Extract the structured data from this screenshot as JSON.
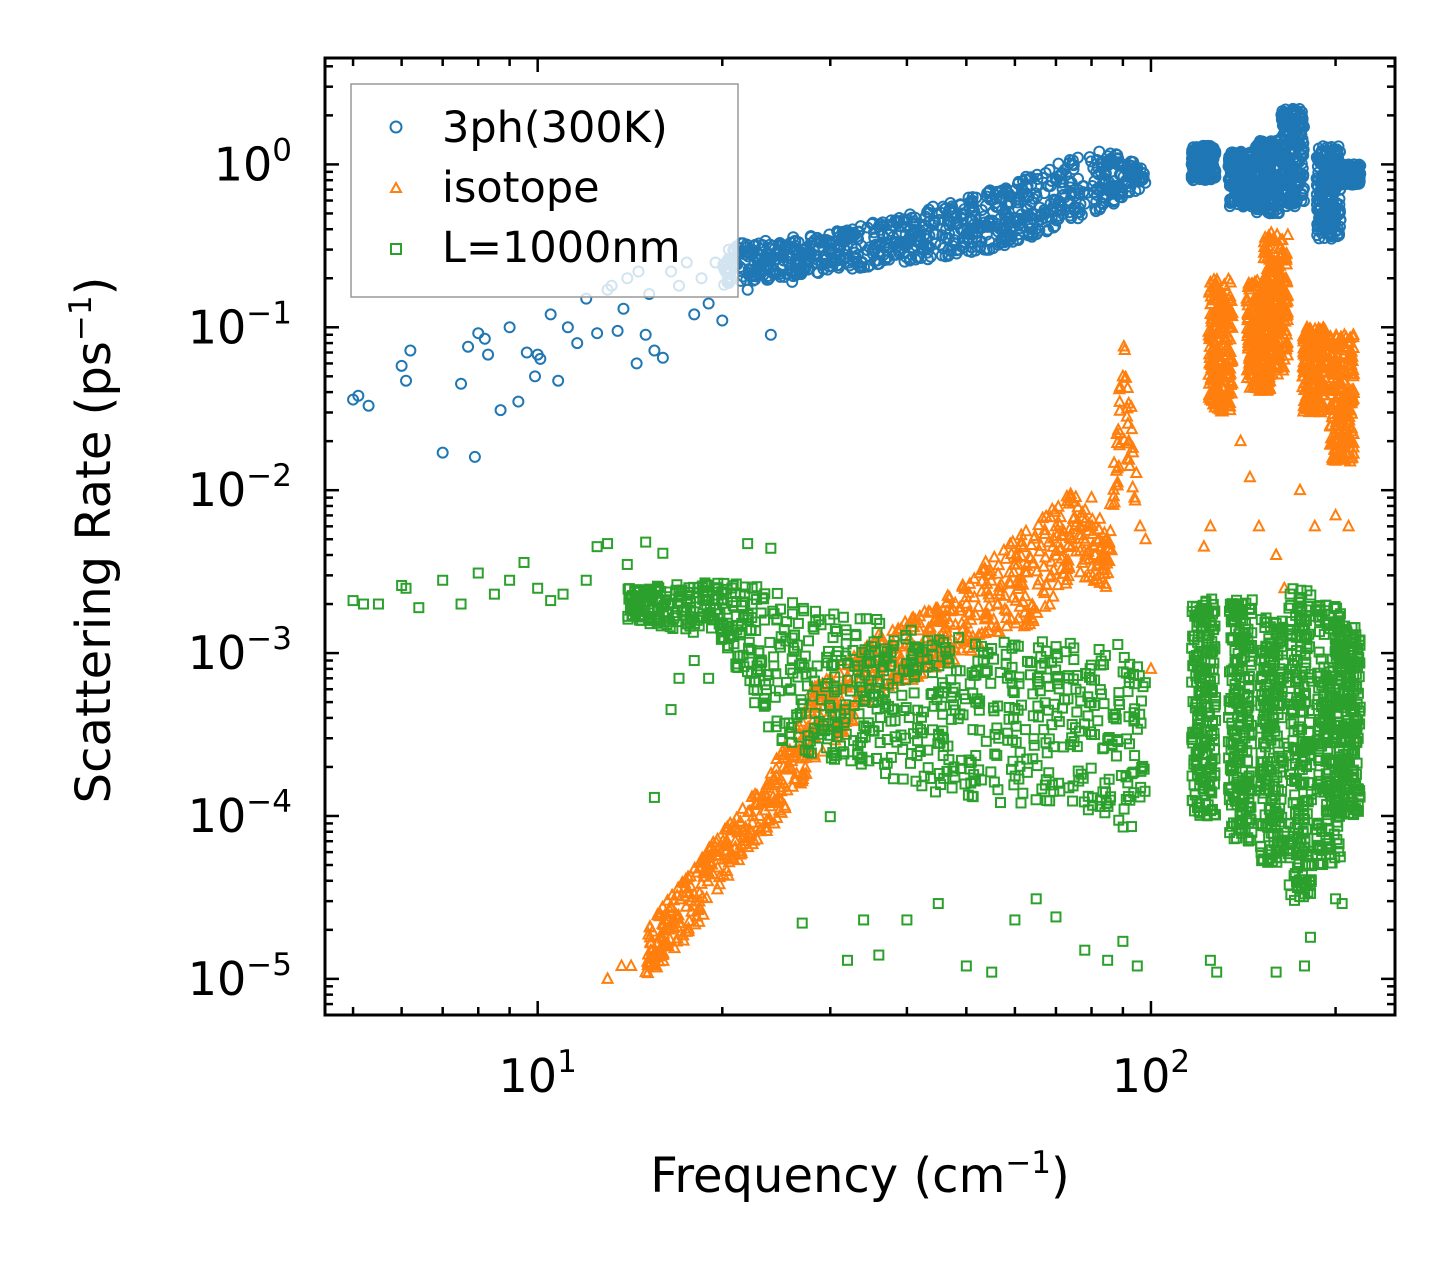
{
  "chart_data": {
    "type": "scatter",
    "title": "",
    "xlabel": "Frequency (cm",
    "xlabel_sup": "−1",
    "xlabel_end": ")",
    "ylabel": "Scattering Rate (ps",
    "ylabel_sup": "−1",
    "ylabel_end": ")",
    "xscale": "log",
    "yscale": "log",
    "xlim": [
      4.5,
      250
    ],
    "ylim": [
      6e-06,
      4.5
    ],
    "x_ticks": [
      {
        "value": 10,
        "base": "10",
        "exp": "1"
      },
      {
        "value": 100,
        "base": "10",
        "exp": "2"
      }
    ],
    "y_ticks": [
      {
        "value": 1,
        "base": "10",
        "exp": "0"
      },
      {
        "value": 0.1,
        "base": "10",
        "exp": "−1"
      },
      {
        "value": 0.01,
        "base": "10",
        "exp": "−2"
      },
      {
        "value": 0.001,
        "base": "10",
        "exp": "−3"
      },
      {
        "value": 0.0001,
        "base": "10",
        "exp": "−4"
      },
      {
        "value": 1e-05,
        "base": "10",
        "exp": "−5"
      }
    ],
    "legend_position": "top-left",
    "series": [
      {
        "name": "3ph(300K)",
        "marker": "circle",
        "color": "#1f77b4",
        "points": [
          [
            5.0,
            0.036
          ],
          [
            5.1,
            0.038
          ],
          [
            5.3,
            0.033
          ],
          [
            6.0,
            0.058
          ],
          [
            6.1,
            0.047
          ],
          [
            6.2,
            0.072
          ],
          [
            7.0,
            0.017
          ],
          [
            7.5,
            0.045
          ],
          [
            7.7,
            0.076
          ],
          [
            7.9,
            0.016
          ],
          [
            8.0,
            0.092
          ],
          [
            8.2,
            0.085
          ],
          [
            8.3,
            0.068
          ],
          [
            8.7,
            0.031
          ],
          [
            9.0,
            0.1
          ],
          [
            9.3,
            0.035
          ],
          [
            9.6,
            0.07
          ],
          [
            9.9,
            0.05
          ],
          [
            10.0,
            0.068
          ],
          [
            10.1,
            0.064
          ],
          [
            10.5,
            0.12
          ],
          [
            10.8,
            0.047
          ],
          [
            11.2,
            0.1
          ],
          [
            11.6,
            0.08
          ],
          [
            12.0,
            0.15
          ],
          [
            12.5,
            0.092
          ],
          [
            13.0,
            0.17
          ],
          [
            13.5,
            0.095
          ],
          [
            14.0,
            0.2
          ],
          [
            14.5,
            0.06
          ],
          [
            15.0,
            0.09
          ],
          [
            15.5,
            0.072
          ],
          [
            16.0,
            0.065
          ],
          [
            17.0,
            0.18
          ],
          [
            18.0,
            0.12
          ],
          [
            19.0,
            0.14
          ],
          [
            20.0,
            0.11
          ],
          [
            22.0,
            0.17
          ],
          [
            24.0,
            0.09
          ],
          [
            26.0,
            0.19
          ],
          [
            13.2,
            0.18
          ],
          [
            13.8,
            0.13
          ],
          [
            14.6,
            0.22
          ],
          [
            15.2,
            0.16
          ],
          [
            16.5,
            0.22
          ],
          [
            17.5,
            0.25
          ],
          [
            18.5,
            0.2
          ],
          [
            19.5,
            0.25
          ],
          [
            20.5,
            0.3
          ],
          [
            21.0,
            0.24
          ]
        ],
        "envelope": [
          [
            20,
            0.18,
            0.32
          ],
          [
            30,
            0.22,
            0.38
          ],
          [
            40,
            0.25,
            0.5
          ],
          [
            55,
            0.3,
            0.7
          ],
          [
            70,
            0.4,
            1.0
          ],
          [
            80,
            0.5,
            1.2
          ],
          [
            90,
            0.6,
            1.2
          ],
          [
            98,
            0.75,
            0.9
          ]
        ],
        "segments": [
          [
            122,
            0.8,
            1.3
          ],
          [
            140,
            0.55,
            1.2
          ],
          [
            155,
            0.5,
            1.4
          ],
          [
            170,
            0.55,
            2.2
          ],
          [
            195,
            0.35,
            1.3
          ],
          [
            210,
            0.75,
            1.0
          ]
        ]
      },
      {
        "name": "isotope",
        "marker": "triangle",
        "color": "#ff7f0e",
        "points": [
          [
            13.0,
            1e-05
          ],
          [
            13.7,
            1.2e-05
          ],
          [
            14.2,
            1.2e-05
          ],
          [
            15.0,
            1.1e-05
          ],
          [
            16.0,
            1.4e-05
          ],
          [
            17.0,
            2.2e-05
          ],
          [
            18.0,
            3.3e-05
          ],
          [
            19.0,
            4.5e-05
          ],
          [
            21.0,
            7e-05
          ],
          [
            23.0,
            0.0001
          ],
          [
            25.0,
            0.00015
          ],
          [
            27.0,
            0.00025
          ],
          [
            30.0,
            0.0005
          ],
          [
            33.0,
            0.0009
          ],
          [
            36.0,
            0.0013
          ],
          [
            40.0,
            0.0014
          ],
          [
            45.0,
            0.0018
          ],
          [
            50.0,
            0.0022
          ],
          [
            60.0,
            0.0035
          ],
          [
            70.0,
            0.006
          ],
          [
            80.0,
            0.009
          ],
          [
            90.0,
            0.05
          ],
          [
            92.0,
            0.02
          ],
          [
            94.0,
            0.009
          ],
          [
            96.0,
            0.006
          ],
          [
            98.0,
            0.005
          ],
          [
            100.0,
            0.0008
          ],
          [
            120.0,
            0.0017
          ],
          [
            122.0,
            0.0045
          ],
          [
            125.0,
            0.006
          ],
          [
            130.0,
            0.05
          ],
          [
            140.0,
            0.02
          ],
          [
            145.0,
            0.012
          ],
          [
            150.0,
            0.006
          ],
          [
            160.0,
            0.004
          ],
          [
            165.0,
            0.0025
          ],
          [
            175.0,
            0.01
          ],
          [
            185.0,
            0.006
          ],
          [
            200.0,
            0.007
          ],
          [
            210.0,
            0.006
          ],
          [
            215.0,
            0.0003
          ]
        ],
        "envelope": [
          [
            15,
            1e-05,
            2e-05
          ],
          [
            18,
            2e-05,
            5e-05
          ],
          [
            21,
            5e-05,
            0.0001
          ],
          [
            25,
            0.0001,
            0.00025
          ],
          [
            28,
            0.0002,
            0.0006
          ],
          [
            35,
            0.0005,
            0.0012
          ],
          [
            45,
            0.0008,
            0.002
          ],
          [
            55,
            0.0012,
            0.004
          ],
          [
            65,
            0.0015,
            0.0065
          ],
          [
            75,
            0.003,
            0.01
          ],
          [
            85,
            0.0025,
            0.006
          ],
          [
            90,
            0.02,
            0.09
          ],
          [
            95,
            0.007,
            0.02
          ]
        ],
        "segments": [
          [
            130,
            0.03,
            0.2
          ],
          [
            150,
            0.04,
            0.2
          ],
          [
            160,
            0.05,
            0.38
          ],
          [
            185,
            0.03,
            0.1
          ],
          [
            205,
            0.015,
            0.09
          ]
        ]
      },
      {
        "name": "L=1000nm",
        "marker": "square",
        "color": "#2ca02c",
        "points": [
          [
            5.0,
            0.0021
          ],
          [
            5.2,
            0.002
          ],
          [
            5.5,
            0.002
          ],
          [
            6.0,
            0.0026
          ],
          [
            6.1,
            0.0025
          ],
          [
            6.4,
            0.0019
          ],
          [
            7.0,
            0.0028
          ],
          [
            7.5,
            0.002
          ],
          [
            8.0,
            0.0031
          ],
          [
            8.5,
            0.0023
          ],
          [
            9.0,
            0.0028
          ],
          [
            9.5,
            0.0036
          ],
          [
            10.0,
            0.0025
          ],
          [
            10.5,
            0.0021
          ],
          [
            11.0,
            0.0023
          ],
          [
            12.0,
            0.0028
          ],
          [
            12.5,
            0.0045
          ],
          [
            13.0,
            0.0047
          ],
          [
            14.0,
            0.0035
          ],
          [
            15.0,
            0.0048
          ],
          [
            16.0,
            0.0041
          ],
          [
            15.5,
            0.00013
          ],
          [
            16.5,
            0.00045
          ],
          [
            17.0,
            0.0007
          ],
          [
            18.0,
            0.0009
          ],
          [
            19.0,
            0.0007
          ],
          [
            22.0,
            0.0047
          ],
          [
            24.0,
            0.0044
          ],
          [
            27.0,
            2.2e-05
          ],
          [
            30.0,
            9.9e-05
          ],
          [
            32.0,
            1.3e-05
          ],
          [
            34.0,
            2.3e-05
          ],
          [
            36.0,
            1.4e-05
          ],
          [
            40.0,
            2.3e-05
          ],
          [
            45.0,
            2.9e-05
          ],
          [
            50.0,
            1.2e-05
          ],
          [
            55.0,
            1.1e-05
          ],
          [
            60.0,
            2.3e-05
          ],
          [
            65.0,
            3.1e-05
          ],
          [
            70.0,
            2.4e-05
          ],
          [
            78.0,
            1.5e-05
          ],
          [
            85.0,
            1.3e-05
          ],
          [
            90.0,
            1.7e-05
          ],
          [
            95.0,
            1.2e-05
          ],
          [
            125.0,
            1.3e-05
          ],
          [
            128.0,
            1.1e-05
          ],
          [
            160.0,
            1.1e-05
          ],
          [
            178.0,
            1.2e-05
          ],
          [
            182.0,
            1.8e-05
          ],
          [
            200.0,
            3.1e-05
          ],
          [
            205.0,
            2.9e-05
          ]
        ],
        "envelope": [
          [
            14,
            0.0016,
            0.0025
          ],
          [
            20,
            0.0012,
            0.0028
          ],
          [
            24,
            0.0003,
            0.0025
          ],
          [
            30,
            0.00022,
            0.0018
          ],
          [
            40,
            0.00015,
            0.0015
          ],
          [
            55,
            0.00012,
            0.0012
          ],
          [
            70,
            0.00012,
            0.0012
          ],
          [
            85,
            0.0001,
            0.0011
          ],
          [
            92,
            8e-05,
            0.0012
          ],
          [
            98,
            0.0001,
            0.0009
          ]
        ],
        "segments": [
          [
            122,
            0.0001,
            0.0022
          ],
          [
            140,
            7e-05,
            0.0022
          ],
          [
            158,
            5e-05,
            0.0018
          ],
          [
            175,
            3e-05,
            0.0025
          ],
          [
            195,
            5e-05,
            0.002
          ],
          [
            210,
            0.0001,
            0.0015
          ]
        ]
      }
    ]
  }
}
